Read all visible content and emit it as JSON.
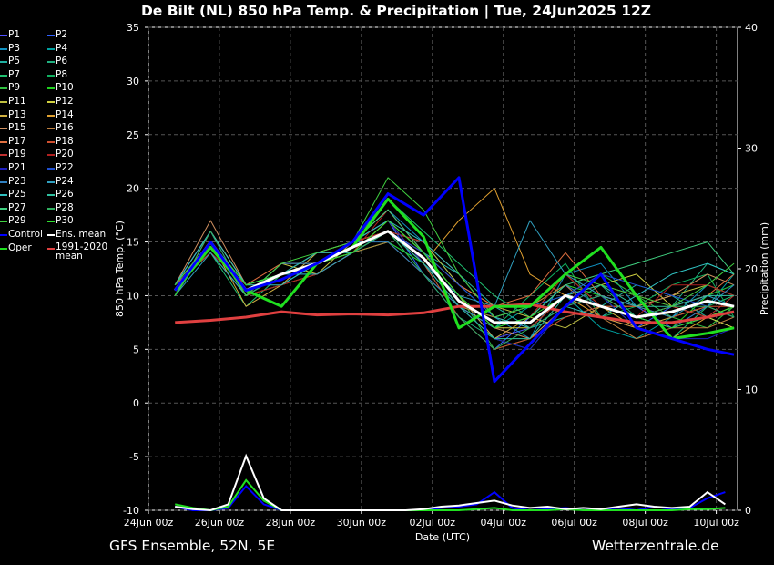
{
  "chart_data": {
    "type": "line",
    "title": "De Bilt  (NL)  850 hPa Temp. & Precipitation | Tue, 24Jun2025 12Z",
    "y_label": "850 hPa Temp. (°C)",
    "y2_label": "Precipitation (mm)",
    "x_label": "Date (UTC)",
    "footer_left": "GFS Ensemble, 52N, 5E",
    "footer_right": "Wetterzentrale.de",
    "xlim": [
      0,
      16.6
    ],
    "xticks": [
      {
        "value": 0,
        "label": "24Jun 00z"
      },
      {
        "value": 2,
        "label": "26Jun 00z"
      },
      {
        "value": 4,
        "label": "28Jun 00z"
      },
      {
        "value": 6,
        "label": "30Jun 00z"
      },
      {
        "value": 8,
        "label": "02Jul 00z"
      },
      {
        "value": 10,
        "label": "04Jul 00z"
      },
      {
        "value": 12,
        "label": "06Jul 00z"
      },
      {
        "value": 14,
        "label": "08Jul 00z"
      },
      {
        "value": 16,
        "label": "10Jul 00z"
      }
    ],
    "ylim": [
      -10,
      35
    ],
    "yticks": [
      -10,
      -5,
      0,
      5,
      10,
      15,
      20,
      25,
      30,
      35
    ],
    "y2lim": [
      0,
      40
    ],
    "y2ticks": [
      0,
      10,
      20,
      30,
      40
    ],
    "grid": true,
    "x": [
      0.75,
      1.75,
      2.75,
      3.75,
      4.75,
      5.75,
      6.75,
      7.75,
      8.75,
      9.75,
      10.75,
      11.75,
      12.75,
      13.75,
      14.75,
      15.75,
      16.5
    ],
    "series": [
      {
        "name": "P1",
        "color": "#5050ff",
        "line_width": 1,
        "values": [
          11,
          15,
          10,
          12,
          13,
          14,
          16,
          14,
          10,
          6,
          7,
          9,
          10,
          9,
          7,
          8,
          9
        ]
      },
      {
        "name": "P2",
        "color": "#3060ff",
        "line_width": 1,
        "values": [
          10,
          16,
          11,
          12,
          14,
          15,
          17,
          12,
          8,
          5,
          8,
          11,
          8,
          7,
          9,
          10,
          11
        ]
      },
      {
        "name": "P3",
        "color": "#1090c0",
        "line_width": 1,
        "values": [
          11,
          14,
          10,
          11,
          13,
          15,
          18,
          15,
          11,
          8,
          6,
          12,
          13,
          9,
          8,
          11,
          10
        ]
      },
      {
        "name": "P4",
        "color": "#00a0a0",
        "line_width": 1,
        "values": [
          10,
          15,
          11,
          12,
          12,
          14,
          15,
          13,
          9,
          7,
          9,
          10,
          7,
          6,
          8,
          9,
          12
        ]
      },
      {
        "name": "P5",
        "color": "#20b0a0",
        "line_width": 1,
        "values": [
          11,
          16,
          10,
          13,
          13,
          15,
          17,
          14,
          12,
          9,
          7,
          8,
          9,
          11,
          10,
          8,
          7
        ]
      },
      {
        "name": "P6",
        "color": "#20b080",
        "line_width": 1,
        "values": [
          10,
          15,
          11,
          12,
          14,
          14,
          16,
          13,
          8,
          6,
          5,
          9,
          11,
          8,
          9,
          13,
          12
        ]
      },
      {
        "name": "P7",
        "color": "#20c070",
        "line_width": 1,
        "values": [
          11,
          14,
          9,
          12,
          13,
          15,
          19,
          16,
          13,
          10,
          8,
          11,
          10,
          7,
          6,
          9,
          10
        ]
      },
      {
        "name": "P8",
        "color": "#10b060",
        "line_width": 1,
        "values": [
          10,
          15,
          10,
          11,
          12,
          14,
          16,
          12,
          9,
          7,
          10,
          13,
          8,
          9,
          11,
          12,
          8
        ]
      },
      {
        "name": "P9",
        "color": "#30c040",
        "line_width": 1,
        "values": [
          11,
          16,
          11,
          12,
          14,
          15,
          17,
          14,
          10,
          5,
          6,
          9,
          12,
          10,
          8,
          7,
          9
        ]
      },
      {
        "name": "P10",
        "color": "#20d020",
        "line_width": 1,
        "values": [
          10,
          15,
          10,
          12,
          13,
          14,
          15,
          13,
          9,
          8,
          9,
          11,
          10,
          8,
          7,
          10,
          11
        ]
      },
      {
        "name": "P11",
        "color": "#c0c040",
        "line_width": 1,
        "values": [
          11,
          14,
          10,
          13,
          12,
          15,
          16,
          15,
          11,
          9,
          8,
          7,
          9,
          9,
          10,
          11,
          10
        ]
      },
      {
        "name": "P12",
        "color": "#d0d040",
        "line_width": 1,
        "values": [
          10,
          16,
          11,
          12,
          13,
          14,
          17,
          13,
          9,
          7,
          7,
          10,
          11,
          12,
          9,
          8,
          7
        ]
      },
      {
        "name": "P13",
        "color": "#d0b040",
        "line_width": 1,
        "values": [
          11,
          15,
          9,
          11,
          14,
          15,
          18,
          14,
          10,
          6,
          8,
          12,
          9,
          7,
          8,
          9,
          8
        ]
      },
      {
        "name": "P14",
        "color": "#e0a030",
        "line_width": 1,
        "values": [
          10,
          15,
          10,
          12,
          13,
          14,
          16,
          13,
          17,
          20,
          12,
          10,
          8,
          7,
          6,
          8,
          9
        ]
      },
      {
        "name": "P15",
        "color": "#d09060",
        "line_width": 1,
        "values": [
          11,
          17,
          11,
          12,
          13,
          15,
          17,
          14,
          10,
          7,
          6,
          9,
          10,
          9,
          10,
          12,
          11
        ]
      },
      {
        "name": "P16",
        "color": "#c08040",
        "line_width": 1,
        "values": [
          10,
          15,
          10,
          11,
          12,
          14,
          15,
          12,
          9,
          8,
          9,
          11,
          8,
          6,
          7,
          7,
          8
        ]
      },
      {
        "name": "P17",
        "color": "#e07040",
        "line_width": 1,
        "values": [
          11,
          16,
          11,
          13,
          13,
          15,
          16,
          14,
          11,
          9,
          10,
          14,
          10,
          8,
          9,
          10,
          12
        ]
      },
      {
        "name": "P18",
        "color": "#d05030",
        "line_width": 1,
        "values": [
          10,
          15,
          10,
          12,
          14,
          14,
          17,
          13,
          8,
          5,
          6,
          8,
          9,
          9,
          8,
          9,
          9
        ]
      },
      {
        "name": "P19",
        "color": "#c03030",
        "line_width": 1,
        "values": [
          11,
          14,
          11,
          12,
          13,
          15,
          16,
          15,
          12,
          8,
          7,
          10,
          11,
          10,
          9,
          8,
          10
        ]
      },
      {
        "name": "P20",
        "color": "#b02020",
        "line_width": 1,
        "values": [
          10,
          15,
          10,
          11,
          12,
          14,
          18,
          14,
          10,
          7,
          8,
          12,
          9,
          8,
          11,
          11,
          10
        ]
      },
      {
        "name": "P21",
        "color": "#2020c0",
        "line_width": 1,
        "values": [
          11,
          16,
          10,
          12,
          13,
          15,
          17,
          13,
          9,
          6,
          5,
          9,
          10,
          7,
          6,
          6,
          7
        ]
      },
      {
        "name": "P22",
        "color": "#2050d0",
        "line_width": 1,
        "values": [
          10,
          15,
          11,
          12,
          14,
          14,
          16,
          14,
          11,
          8,
          9,
          10,
          12,
          11,
          10,
          9,
          8
        ]
      },
      {
        "name": "P23",
        "color": "#3080c0",
        "line_width": 1,
        "values": [
          11,
          15,
          10,
          13,
          13,
          15,
          15,
          12,
          9,
          7,
          8,
          11,
          9,
          8,
          7,
          9,
          11
        ]
      },
      {
        "name": "P24",
        "color": "#30a0c0",
        "line_width": 1,
        "values": [
          10,
          14,
          10,
          12,
          12,
          14,
          16,
          13,
          10,
          9,
          17,
          12,
          10,
          9,
          8,
          10,
          9
        ]
      },
      {
        "name": "P25",
        "color": "#30c0c0",
        "line_width": 1,
        "values": [
          11,
          16,
          11,
          11,
          13,
          15,
          17,
          15,
          12,
          8,
          7,
          9,
          8,
          10,
          12,
          13,
          12
        ]
      },
      {
        "name": "P26",
        "color": "#30c0a0",
        "line_width": 1,
        "values": [
          10,
          15,
          10,
          12,
          14,
          14,
          16,
          13,
          9,
          6,
          6,
          10,
          11,
          9,
          9,
          10,
          10
        ]
      },
      {
        "name": "P27",
        "color": "#40d080",
        "line_width": 1,
        "values": [
          11,
          15,
          11,
          12,
          13,
          15,
          18,
          14,
          10,
          7,
          8,
          11,
          12,
          13,
          14,
          15,
          12
        ]
      },
      {
        "name": "P28",
        "color": "#30b060",
        "line_width": 1,
        "values": [
          10,
          16,
          10,
          12,
          13,
          14,
          16,
          12,
          8,
          5,
          7,
          9,
          10,
          8,
          9,
          9,
          8
        ]
      },
      {
        "name": "P29",
        "color": "#40d040",
        "line_width": 1,
        "values": [
          11,
          15,
          10,
          13,
          14,
          15,
          21,
          18,
          12,
          8,
          9,
          12,
          11,
          10,
          9,
          11,
          13
        ]
      },
      {
        "name": "P30",
        "color": "#30e030",
        "line_width": 1,
        "values": [
          10,
          15,
          11,
          12,
          13,
          14,
          17,
          14,
          10,
          7,
          8,
          10,
          9,
          8,
          7,
          8,
          9
        ]
      },
      {
        "name": "Control",
        "color": "#0000ff",
        "line_width": 3,
        "values": [
          10.5,
          15,
          10.5,
          11.5,
          13,
          15,
          19.5,
          17.5,
          21,
          2,
          5.5,
          9,
          12,
          7,
          6,
          5,
          4.5
        ]
      },
      {
        "name": "Ens. mean",
        "color": "#ffffff",
        "line_width": 3,
        "values": [
          10.5,
          15,
          10.5,
          12,
          13,
          14.5,
          16,
          13.5,
          9.5,
          7.5,
          7.5,
          10,
          9,
          8,
          8.5,
          9.5,
          9
        ]
      },
      {
        "name": "Oper",
        "color": "#20e020",
        "line_width": 3,
        "values": [
          10.5,
          14.5,
          10.5,
          9,
          13,
          14.5,
          19,
          15.5,
          7,
          9,
          9,
          12,
          14.5,
          10,
          6,
          6.5,
          7
        ]
      },
      {
        "name": "1991-2020 mean",
        "color": "#e04040",
        "line_width": 3,
        "values": [
          7.5,
          7.7,
          8,
          8.5,
          8.2,
          8.3,
          8.2,
          8.4,
          9,
          9,
          9.2,
          8.5,
          8,
          7.5,
          7.5,
          8,
          8.5
        ]
      }
    ],
    "precipitation_x": [
      0.75,
      1.25,
      1.75,
      2.25,
      2.75,
      3.25,
      3.75,
      4.25,
      4.75,
      5.25,
      5.75,
      6.25,
      6.75,
      7.25,
      7.75,
      8.25,
      8.75,
      9.25,
      9.75,
      10.25,
      10.75,
      11.25,
      11.75,
      12.25,
      12.75,
      13.25,
      13.75,
      14.25,
      14.75,
      15.25,
      15.75,
      16.25
    ],
    "precipitation_series": [
      {
        "color": "#0000ff",
        "axis": "y2",
        "values": [
          0.3,
          0,
          0,
          0.2,
          2,
          0.5,
          0,
          0,
          0,
          0,
          0,
          0,
          0,
          0,
          0,
          0.2,
          0.3,
          0.5,
          1.5,
          0.2,
          0,
          0.1,
          0.2,
          0,
          0.1,
          0.2,
          0,
          0.3,
          0.1,
          0.2,
          1,
          1.5
        ]
      },
      {
        "color": "#20e020",
        "axis": "y2",
        "values": [
          0.5,
          0.2,
          0,
          0.3,
          2.5,
          0.8,
          0,
          0,
          0,
          0,
          0,
          0,
          0,
          0,
          0,
          0,
          0,
          0.1,
          0.2,
          0,
          0,
          0,
          0.1,
          0,
          0,
          0,
          0,
          0,
          0,
          0.1,
          0.1,
          0.2
        ]
      },
      {
        "color": "#ffffff",
        "axis": "y2",
        "values": [
          0.3,
          0.1,
          0,
          0.5,
          4.5,
          1,
          0,
          0,
          0,
          0,
          0,
          0,
          0,
          0,
          0.1,
          0.3,
          0.4,
          0.6,
          0.8,
          0.4,
          0.2,
          0.3,
          0.1,
          0.2,
          0.1,
          0.3,
          0.5,
          0.3,
          0.2,
          0.3,
          1.5,
          0.5
        ]
      }
    ]
  }
}
